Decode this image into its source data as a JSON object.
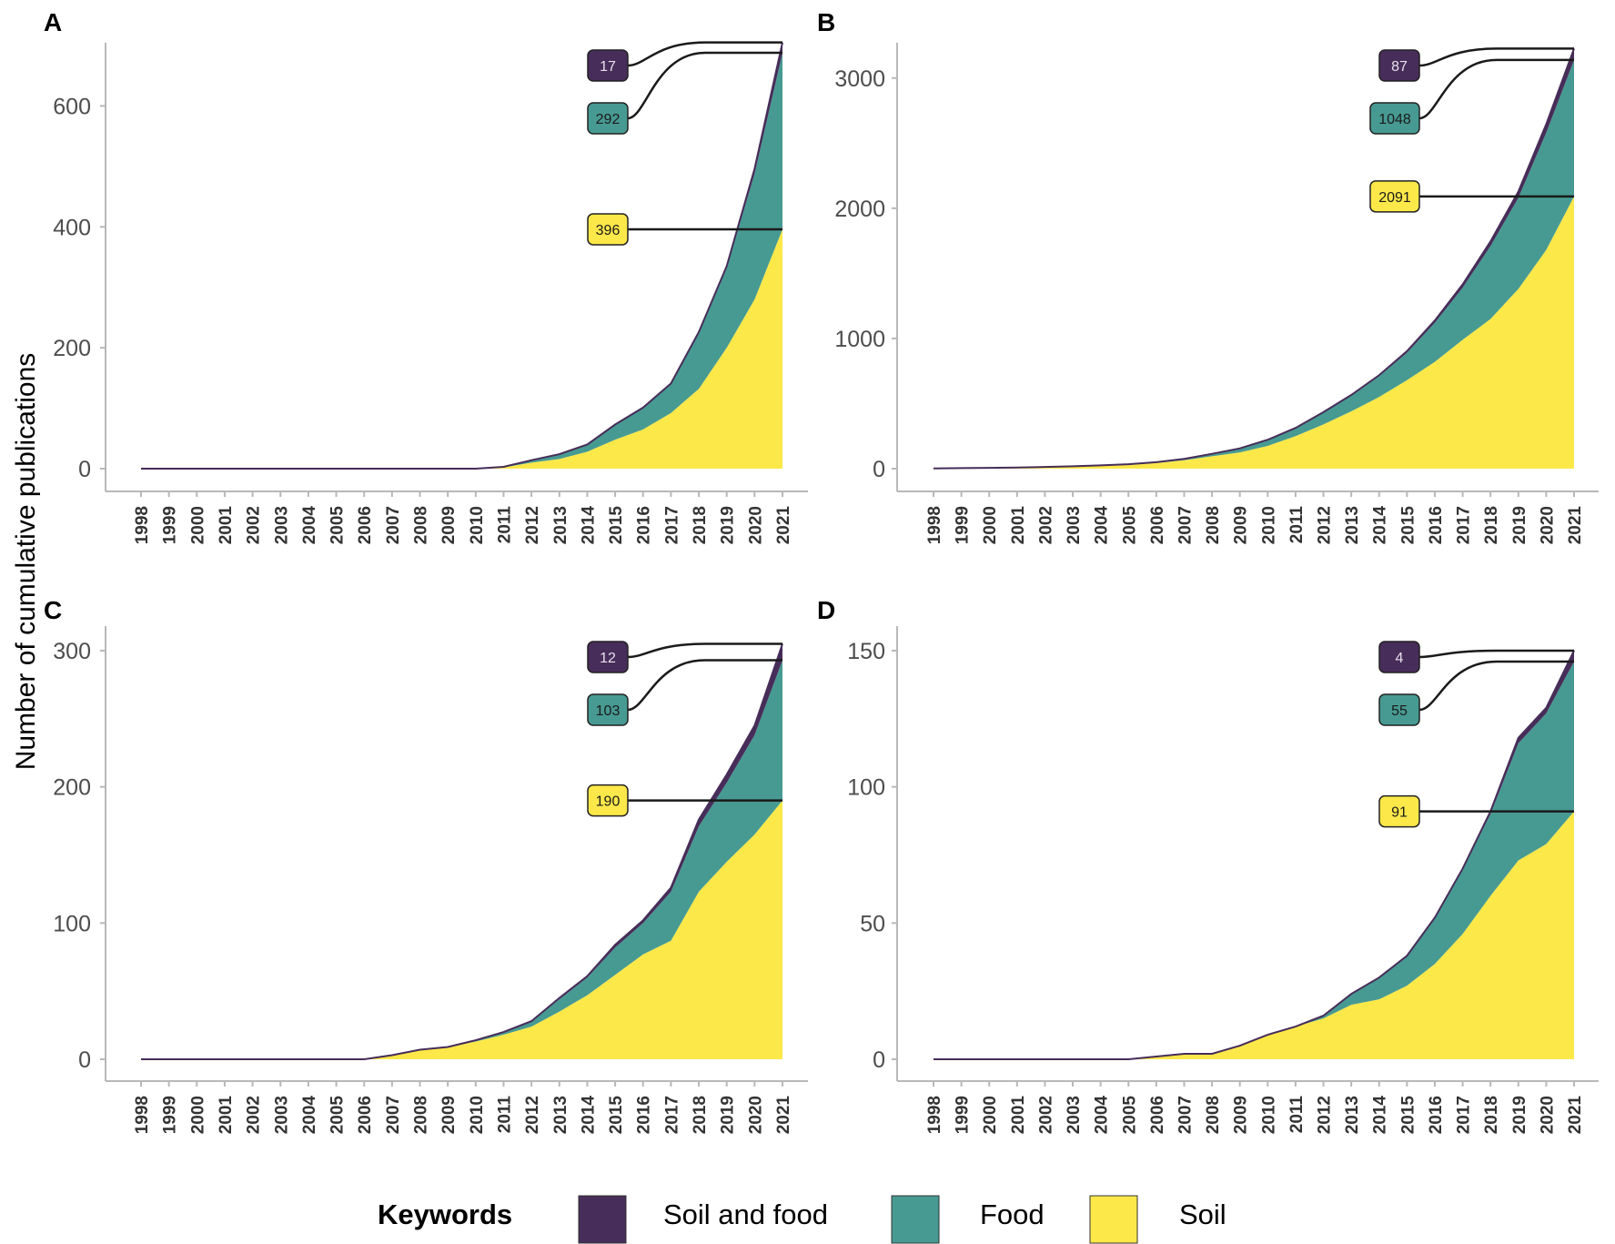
{
  "figure": {
    "ylabel": "Number of cumulative publications",
    "legend_title": "Keywords",
    "legend": [
      {
        "key": "soil_food",
        "label": "Soil and food",
        "color": "#472d59"
      },
      {
        "key": "food",
        "label": "Food",
        "color": "#479a92"
      },
      {
        "key": "soil",
        "label": "Soil",
        "color": "#fde84a"
      }
    ]
  },
  "colors": {
    "soil": "#fde84a",
    "food": "#479a92",
    "soil_food": "#472d59",
    "axis": "#b8b8b8",
    "leader": "#1a1a1a"
  },
  "chart_data": [
    {
      "type": "area",
      "stacked": true,
      "panel": "A",
      "x": [
        1998,
        1999,
        2000,
        2001,
        2002,
        2003,
        2004,
        2005,
        2006,
        2007,
        2008,
        2009,
        2010,
        2011,
        2012,
        2013,
        2014,
        2015,
        2016,
        2017,
        2018,
        2019,
        2020,
        2021
      ],
      "ylim": [
        0,
        700
      ],
      "yticks": [
        0,
        200,
        400,
        600
      ],
      "series": [
        {
          "name": "Soil",
          "values": [
            0,
            0,
            0,
            0,
            0,
            0,
            0,
            0,
            0,
            0,
            0,
            0,
            0,
            2,
            10,
            16,
            28,
            48,
            65,
            92,
            132,
            200,
            280,
            396
          ]
        },
        {
          "name": "Food",
          "values": [
            0,
            0,
            0,
            0,
            0,
            0,
            0,
            0,
            0,
            0,
            0,
            0,
            0,
            1,
            4,
            8,
            12,
            24,
            35,
            48,
            92,
            132,
            208,
            292
          ]
        },
        {
          "name": "Soil and food",
          "values": [
            0,
            0,
            0,
            0,
            0,
            0,
            0,
            0,
            0,
            0,
            0,
            0,
            0,
            0,
            0,
            0,
            0,
            1,
            1,
            1,
            2,
            3,
            8,
            17
          ]
        }
      ],
      "labels": [
        {
          "series": "Soil and food",
          "text": "17"
        },
        {
          "series": "Food",
          "text": "292"
        },
        {
          "series": "Soil",
          "text": "396"
        }
      ]
    },
    {
      "type": "area",
      "stacked": true,
      "panel": "B",
      "x": [
        1998,
        1999,
        2000,
        2001,
        2002,
        2003,
        2004,
        2005,
        2006,
        2007,
        2008,
        2009,
        2010,
        2011,
        2012,
        2013,
        2014,
        2015,
        2016,
        2017,
        2018,
        2019,
        2020,
        2021
      ],
      "ylim": [
        0,
        3250
      ],
      "yticks": [
        0,
        1000,
        2000,
        3000
      ],
      "series": [
        {
          "name": "Soil",
          "values": [
            2,
            4,
            6,
            8,
            12,
            16,
            22,
            30,
            44,
            65,
            95,
            125,
            175,
            250,
            340,
            440,
            550,
            680,
            820,
            990,
            1150,
            1380,
            1680,
            2091
          ]
        },
        {
          "name": "Food",
          "values": [
            0,
            0,
            0,
            1,
            1,
            2,
            3,
            4,
            6,
            10,
            18,
            30,
            45,
            60,
            90,
            120,
            160,
            210,
            300,
            400,
            560,
            700,
            900,
            1048
          ]
        },
        {
          "name": "Soil and food",
          "values": [
            0,
            0,
            0,
            0,
            0,
            0,
            0,
            0,
            0,
            0,
            1,
            1,
            2,
            3,
            4,
            6,
            8,
            12,
            18,
            25,
            35,
            48,
            65,
            87
          ]
        }
      ],
      "labels": [
        {
          "series": "Soil and food",
          "text": "87"
        },
        {
          "series": "Food",
          "text": "1048"
        },
        {
          "series": "Soil",
          "text": "2091"
        }
      ]
    },
    {
      "type": "area",
      "stacked": true,
      "panel": "C",
      "x": [
        1998,
        1999,
        2000,
        2001,
        2002,
        2003,
        2004,
        2005,
        2006,
        2007,
        2008,
        2009,
        2010,
        2011,
        2012,
        2013,
        2014,
        2015,
        2016,
        2017,
        2018,
        2019,
        2020,
        2021
      ],
      "ylim": [
        0,
        310
      ],
      "yticks": [
        0,
        100,
        200,
        300
      ],
      "series": [
        {
          "name": "Soil",
          "values": [
            0,
            0,
            0,
            0,
            0,
            0,
            0,
            0,
            0,
            3,
            7,
            9,
            13,
            18,
            24,
            35,
            47,
            62,
            77,
            87,
            123,
            145,
            165,
            190
          ]
        },
        {
          "name": "Food",
          "values": [
            0,
            0,
            0,
            0,
            0,
            0,
            0,
            0,
            0,
            0,
            0,
            0,
            1,
            2,
            4,
            9,
            13,
            20,
            23,
            36,
            48,
            58,
            73,
            103
          ]
        },
        {
          "name": "Soil and food",
          "values": [
            0,
            0,
            0,
            0,
            0,
            0,
            0,
            0,
            0,
            0,
            0,
            0,
            0,
            0,
            0,
            1,
            1,
            2,
            2,
            3,
            5,
            6,
            7,
            12
          ]
        }
      ],
      "labels": [
        {
          "series": "Soil and food",
          "text": "12"
        },
        {
          "series": "Food",
          "text": "103"
        },
        {
          "series": "Soil",
          "text": "190"
        }
      ]
    },
    {
      "type": "area",
      "stacked": true,
      "panel": "D",
      "x": [
        1998,
        1999,
        2000,
        2001,
        2002,
        2003,
        2004,
        2005,
        2006,
        2007,
        2008,
        2009,
        2010,
        2011,
        2012,
        2013,
        2014,
        2015,
        2016,
        2017,
        2018,
        2019,
        2020,
        2021
      ],
      "ylim": [
        0,
        155
      ],
      "yticks": [
        0,
        50,
        100,
        150
      ],
      "series": [
        {
          "name": "Soil",
          "values": [
            0,
            0,
            0,
            0,
            0,
            0,
            0,
            0,
            1,
            2,
            2,
            5,
            9,
            12,
            15,
            20,
            22,
            27,
            35,
            46,
            60,
            73,
            79,
            91
          ]
        },
        {
          "name": "Food",
          "values": [
            0,
            0,
            0,
            0,
            0,
            0,
            0,
            0,
            0,
            0,
            0,
            0,
            0,
            0,
            1,
            4,
            8,
            11,
            17,
            24,
            30,
            43,
            48,
            55
          ]
        },
        {
          "name": "Soil and food",
          "values": [
            0,
            0,
            0,
            0,
            0,
            0,
            0,
            0,
            0,
            0,
            0,
            0,
            0,
            0,
            0,
            0,
            0,
            0,
            0,
            0,
            1,
            2,
            2,
            4
          ]
        }
      ],
      "labels": [
        {
          "series": "Soil and food",
          "text": "4"
        },
        {
          "series": "Food",
          "text": "55"
        },
        {
          "series": "Soil",
          "text": "91"
        }
      ]
    }
  ]
}
